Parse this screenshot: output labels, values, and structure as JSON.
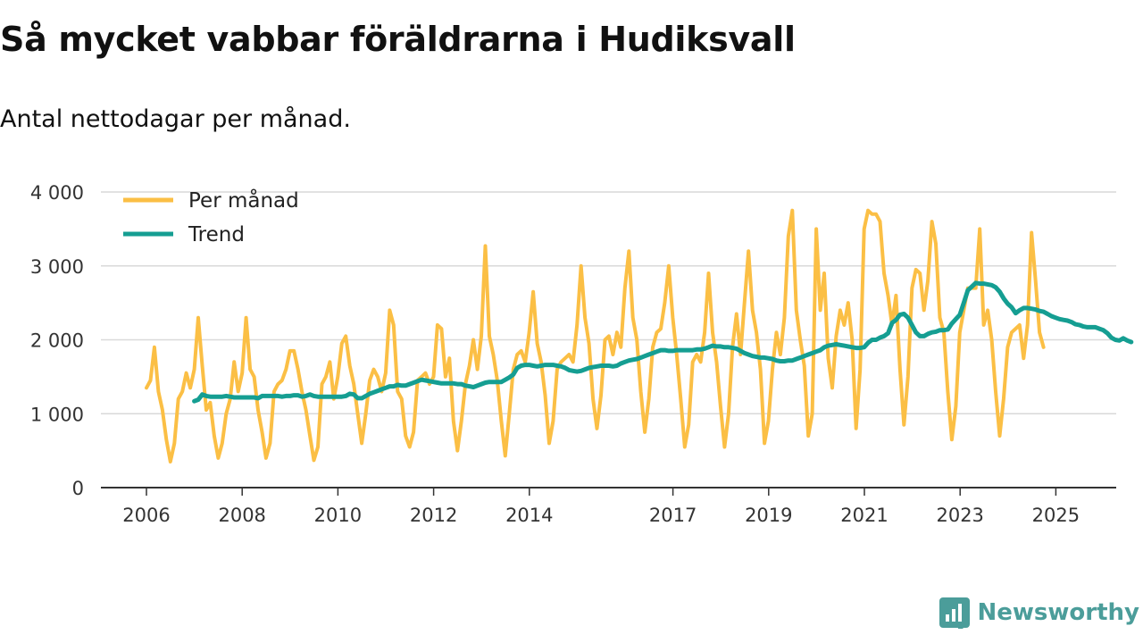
{
  "title": "Så mycket vabbar föräldrarna i Hudiksvall",
  "subtitle": "Antal nettodagar per månad.",
  "brand": {
    "name": "Newsworthy",
    "icon": "chart-logo-icon",
    "color": "#4b9d9a"
  },
  "chart_data": {
    "type": "line",
    "title": "Så mycket vabbar föräldrarna i Hudiksvall",
    "subtitle": "Antal nettodagar per månad.",
    "xlabel": "",
    "ylabel": "",
    "ylim": [
      0,
      4000
    ],
    "xlim": [
      2006.0,
      2025.6
    ],
    "yticks": [
      0,
      1000,
      2000,
      3000,
      4000
    ],
    "ytick_labels": [
      "0",
      "1 000",
      "2 000",
      "3 000",
      "4 000"
    ],
    "xticks": [
      2006,
      2008,
      2010,
      2012,
      2014,
      2017,
      2019,
      2021,
      2023,
      2025
    ],
    "xtick_labels": [
      "2006",
      "2008",
      "2010",
      "2012",
      "2014",
      "2017",
      "2019",
      "2021",
      "2023",
      "2025"
    ],
    "grid": true,
    "legend_position": "top-left",
    "series": [
      {
        "name": "Per månad",
        "color": "#fbbf45",
        "x_start": 2006.0,
        "x_step": 0.0833,
        "values": [
          1350,
          1450,
          1900,
          1300,
          1050,
          650,
          350,
          600,
          1200,
          1300,
          1550,
          1350,
          1600,
          2300,
          1650,
          1050,
          1150,
          700,
          400,
          600,
          1000,
          1200,
          1700,
          1300,
          1550,
          2300,
          1600,
          1500,
          1050,
          750,
          400,
          600,
          1300,
          1400,
          1450,
          1600,
          1850,
          1850,
          1600,
          1300,
          1050,
          700,
          370,
          550,
          1400,
          1500,
          1700,
          1200,
          1500,
          1950,
          2050,
          1650,
          1400,
          1000,
          600,
          1000,
          1450,
          1600,
          1500,
          1300,
          1550,
          2400,
          2200,
          1300,
          1200,
          700,
          550,
          750,
          1450,
          1500,
          1550,
          1400,
          1500,
          2200,
          2150,
          1500,
          1750,
          900,
          500,
          900,
          1400,
          1650,
          2000,
          1600,
          2050,
          3270,
          2050,
          1800,
          1450,
          900,
          430,
          1000,
          1600,
          1800,
          1850,
          1700,
          2100,
          2650,
          1950,
          1700,
          1250,
          600,
          900,
          1600,
          1700,
          1750,
          1800,
          1700,
          2200,
          3000,
          2300,
          1950,
          1200,
          800,
          1250,
          2000,
          2050,
          1800,
          2100,
          1900,
          2700,
          3200,
          2300,
          2000,
          1300,
          750,
          1200,
          1900,
          2100,
          2150,
          2500,
          3000,
          2300,
          1800,
          1200,
          550,
          850,
          1700,
          1800,
          1700,
          2100,
          2900,
          2100,
          1700,
          1100,
          550,
          1000,
          1900,
          2350,
          1800,
          2500,
          3200,
          2400,
          2100,
          1600,
          600,
          900,
          1600,
          2100,
          1800,
          2300,
          3400,
          3750,
          2400,
          2000,
          1650,
          700,
          1000,
          3500,
          2400,
          2900,
          1750,
          1350,
          2050,
          2400,
          2200,
          2500,
          2000,
          800,
          1600,
          3500,
          3750,
          3700,
          3700,
          3600,
          2900,
          2600,
          2200,
          2600,
          1600,
          850,
          1500,
          2700,
          2950,
          2900,
          2400,
          2800,
          3600,
          3300,
          2300,
          2100,
          1300,
          650,
          1100,
          2100,
          2400,
          2700,
          2700,
          2700,
          3500,
          2200,
          2400,
          2000,
          1300,
          700,
          1200,
          1900,
          2100,
          2150,
          2200,
          1750,
          2200,
          3450,
          2800,
          2100,
          1900
        ]
      },
      {
        "name": "Trend",
        "color": "#159e92",
        "x_start": 2007.0,
        "x_step": 0.0833,
        "values": [
          1170,
          1190,
          1260,
          1240,
          1230,
          1230,
          1230,
          1230,
          1240,
          1230,
          1220,
          1220,
          1220,
          1220,
          1220,
          1220,
          1210,
          1240,
          1240,
          1240,
          1240,
          1240,
          1230,
          1240,
          1240,
          1250,
          1250,
          1230,
          1240,
          1260,
          1240,
          1230,
          1230,
          1230,
          1230,
          1230,
          1230,
          1230,
          1240,
          1270,
          1260,
          1210,
          1210,
          1240,
          1270,
          1290,
          1310,
          1330,
          1350,
          1370,
          1370,
          1390,
          1380,
          1380,
          1400,
          1420,
          1440,
          1460,
          1450,
          1440,
          1430,
          1420,
          1410,
          1410,
          1410,
          1410,
          1400,
          1400,
          1380,
          1370,
          1360,
          1380,
          1400,
          1420,
          1430,
          1430,
          1430,
          1430,
          1460,
          1490,
          1530,
          1620,
          1650,
          1660,
          1660,
          1650,
          1640,
          1650,
          1660,
          1660,
          1660,
          1650,
          1640,
          1620,
          1590,
          1580,
          1570,
          1580,
          1600,
          1620,
          1630,
          1640,
          1650,
          1650,
          1650,
          1640,
          1650,
          1680,
          1700,
          1720,
          1730,
          1740,
          1760,
          1780,
          1800,
          1820,
          1840,
          1860,
          1860,
          1850,
          1850,
          1860,
          1860,
          1860,
          1860,
          1860,
          1870,
          1870,
          1880,
          1900,
          1920,
          1910,
          1910,
          1900,
          1900,
          1890,
          1880,
          1850,
          1820,
          1800,
          1780,
          1770,
          1760,
          1760,
          1750,
          1740,
          1720,
          1710,
          1710,
          1720,
          1720,
          1740,
          1760,
          1780,
          1800,
          1820,
          1840,
          1860,
          1900,
          1920,
          1930,
          1940,
          1930,
          1920,
          1910,
          1900,
          1890,
          1890,
          1900,
          1960,
          2000,
          2000,
          2030,
          2050,
          2090,
          2230,
          2270,
          2340,
          2350,
          2300,
          2200,
          2100,
          2050,
          2050,
          2080,
          2100,
          2110,
          2130,
          2130,
          2140,
          2220,
          2280,
          2340,
          2500,
          2670,
          2720,
          2770,
          2760,
          2760,
          2750,
          2740,
          2710,
          2650,
          2560,
          2490,
          2440,
          2360,
          2400,
          2430,
          2430,
          2420,
          2410,
          2390,
          2380,
          2350,
          2320,
          2300,
          2280,
          2270,
          2260,
          2240,
          2210,
          2200,
          2180,
          2170,
          2170,
          2170,
          2150,
          2130,
          2090,
          2030,
          2000,
          1990,
          2020,
          1990,
          1970
        ]
      }
    ]
  }
}
